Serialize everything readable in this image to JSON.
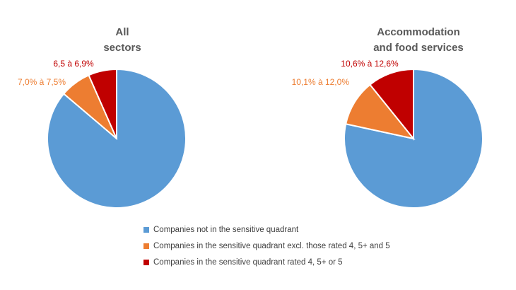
{
  "chart_data": [
    {
      "type": "pie",
      "title_lines": [
        "All",
        "sectors"
      ],
      "values": [
        86.2,
        7.2,
        6.6
      ],
      "labels": [
        "",
        "7,0% à 7,5%",
        "6,5 à 6,9%"
      ],
      "colors": [
        "#5b9bd5",
        "#ed7d31",
        "#c00000"
      ]
    },
    {
      "type": "pie",
      "title_lines": [
        "Accommodation",
        "and food services"
      ],
      "values": [
        78.4,
        10.8,
        10.8
      ],
      "labels": [
        "",
        "10,1% à 12,0%",
        "10,6% à 12,6%"
      ],
      "colors": [
        "#5b9bd5",
        "#ed7d31",
        "#c00000"
      ]
    }
  ],
  "legend": [
    {
      "label": "Companies not in the sensitive quadrant",
      "color": "#5b9bd5"
    },
    {
      "label": "Companies in the sensitive quadrant excl. those rated 4, 5+ and 5",
      "color": "#ed7d31"
    },
    {
      "label": "Companies in the sensitive quadrant rated 4, 5+ or 5",
      "color": "#c00000"
    }
  ]
}
